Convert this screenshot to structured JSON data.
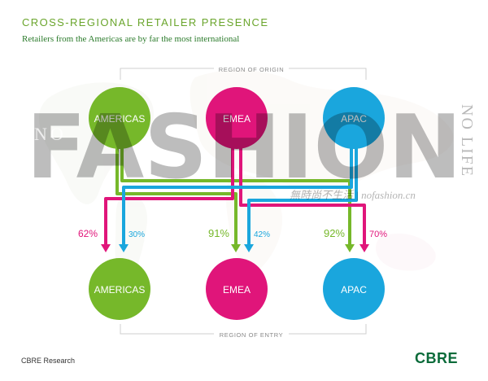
{
  "header": {
    "title": "CROSS-REGIONAL RETAILER PRESENCE",
    "subtitle": "Retailers from the Americas are by far the most international"
  },
  "labels": {
    "origin": "REGION OF ORIGIN",
    "entry": "REGION OF ENTRY"
  },
  "origin_regions": [
    {
      "name": "AMERICAS",
      "color": "#76b82a"
    },
    {
      "name": "EMEA",
      "color": "#e0157a"
    },
    {
      "name": "APAC",
      "color": "#1aa6dd"
    }
  ],
  "entry_regions": [
    {
      "name": "AMERICAS",
      "color": "#76b82a"
    },
    {
      "name": "EMEA",
      "color": "#e0157a"
    },
    {
      "name": "APAC",
      "color": "#1aa6dd"
    }
  ],
  "flows": [
    {
      "entry": "AMERICAS",
      "from": "EMEA",
      "value": "62%",
      "color": "#e0157a"
    },
    {
      "entry": "AMERICAS",
      "from": "APAC",
      "value": "30%",
      "color": "#1aa6dd"
    },
    {
      "entry": "EMEA",
      "from": "AMERICAS",
      "value": "91%",
      "color": "#76b82a"
    },
    {
      "entry": "EMEA",
      "from": "APAC",
      "value": "42%",
      "color": "#1aa6dd"
    },
    {
      "entry": "APAC",
      "from": "AMERICAS",
      "value": "92%",
      "color": "#76b82a"
    },
    {
      "entry": "APAC",
      "from": "EMEA",
      "value": "70%",
      "color": "#e0157a"
    }
  ],
  "watermark": {
    "big": "FASHION",
    "left": "NO",
    "right": "NO LIFE",
    "site": "無時尚不生活 | nofashion.cn"
  },
  "footer": {
    "source": "CBRE Research",
    "logo": "CBRE"
  }
}
